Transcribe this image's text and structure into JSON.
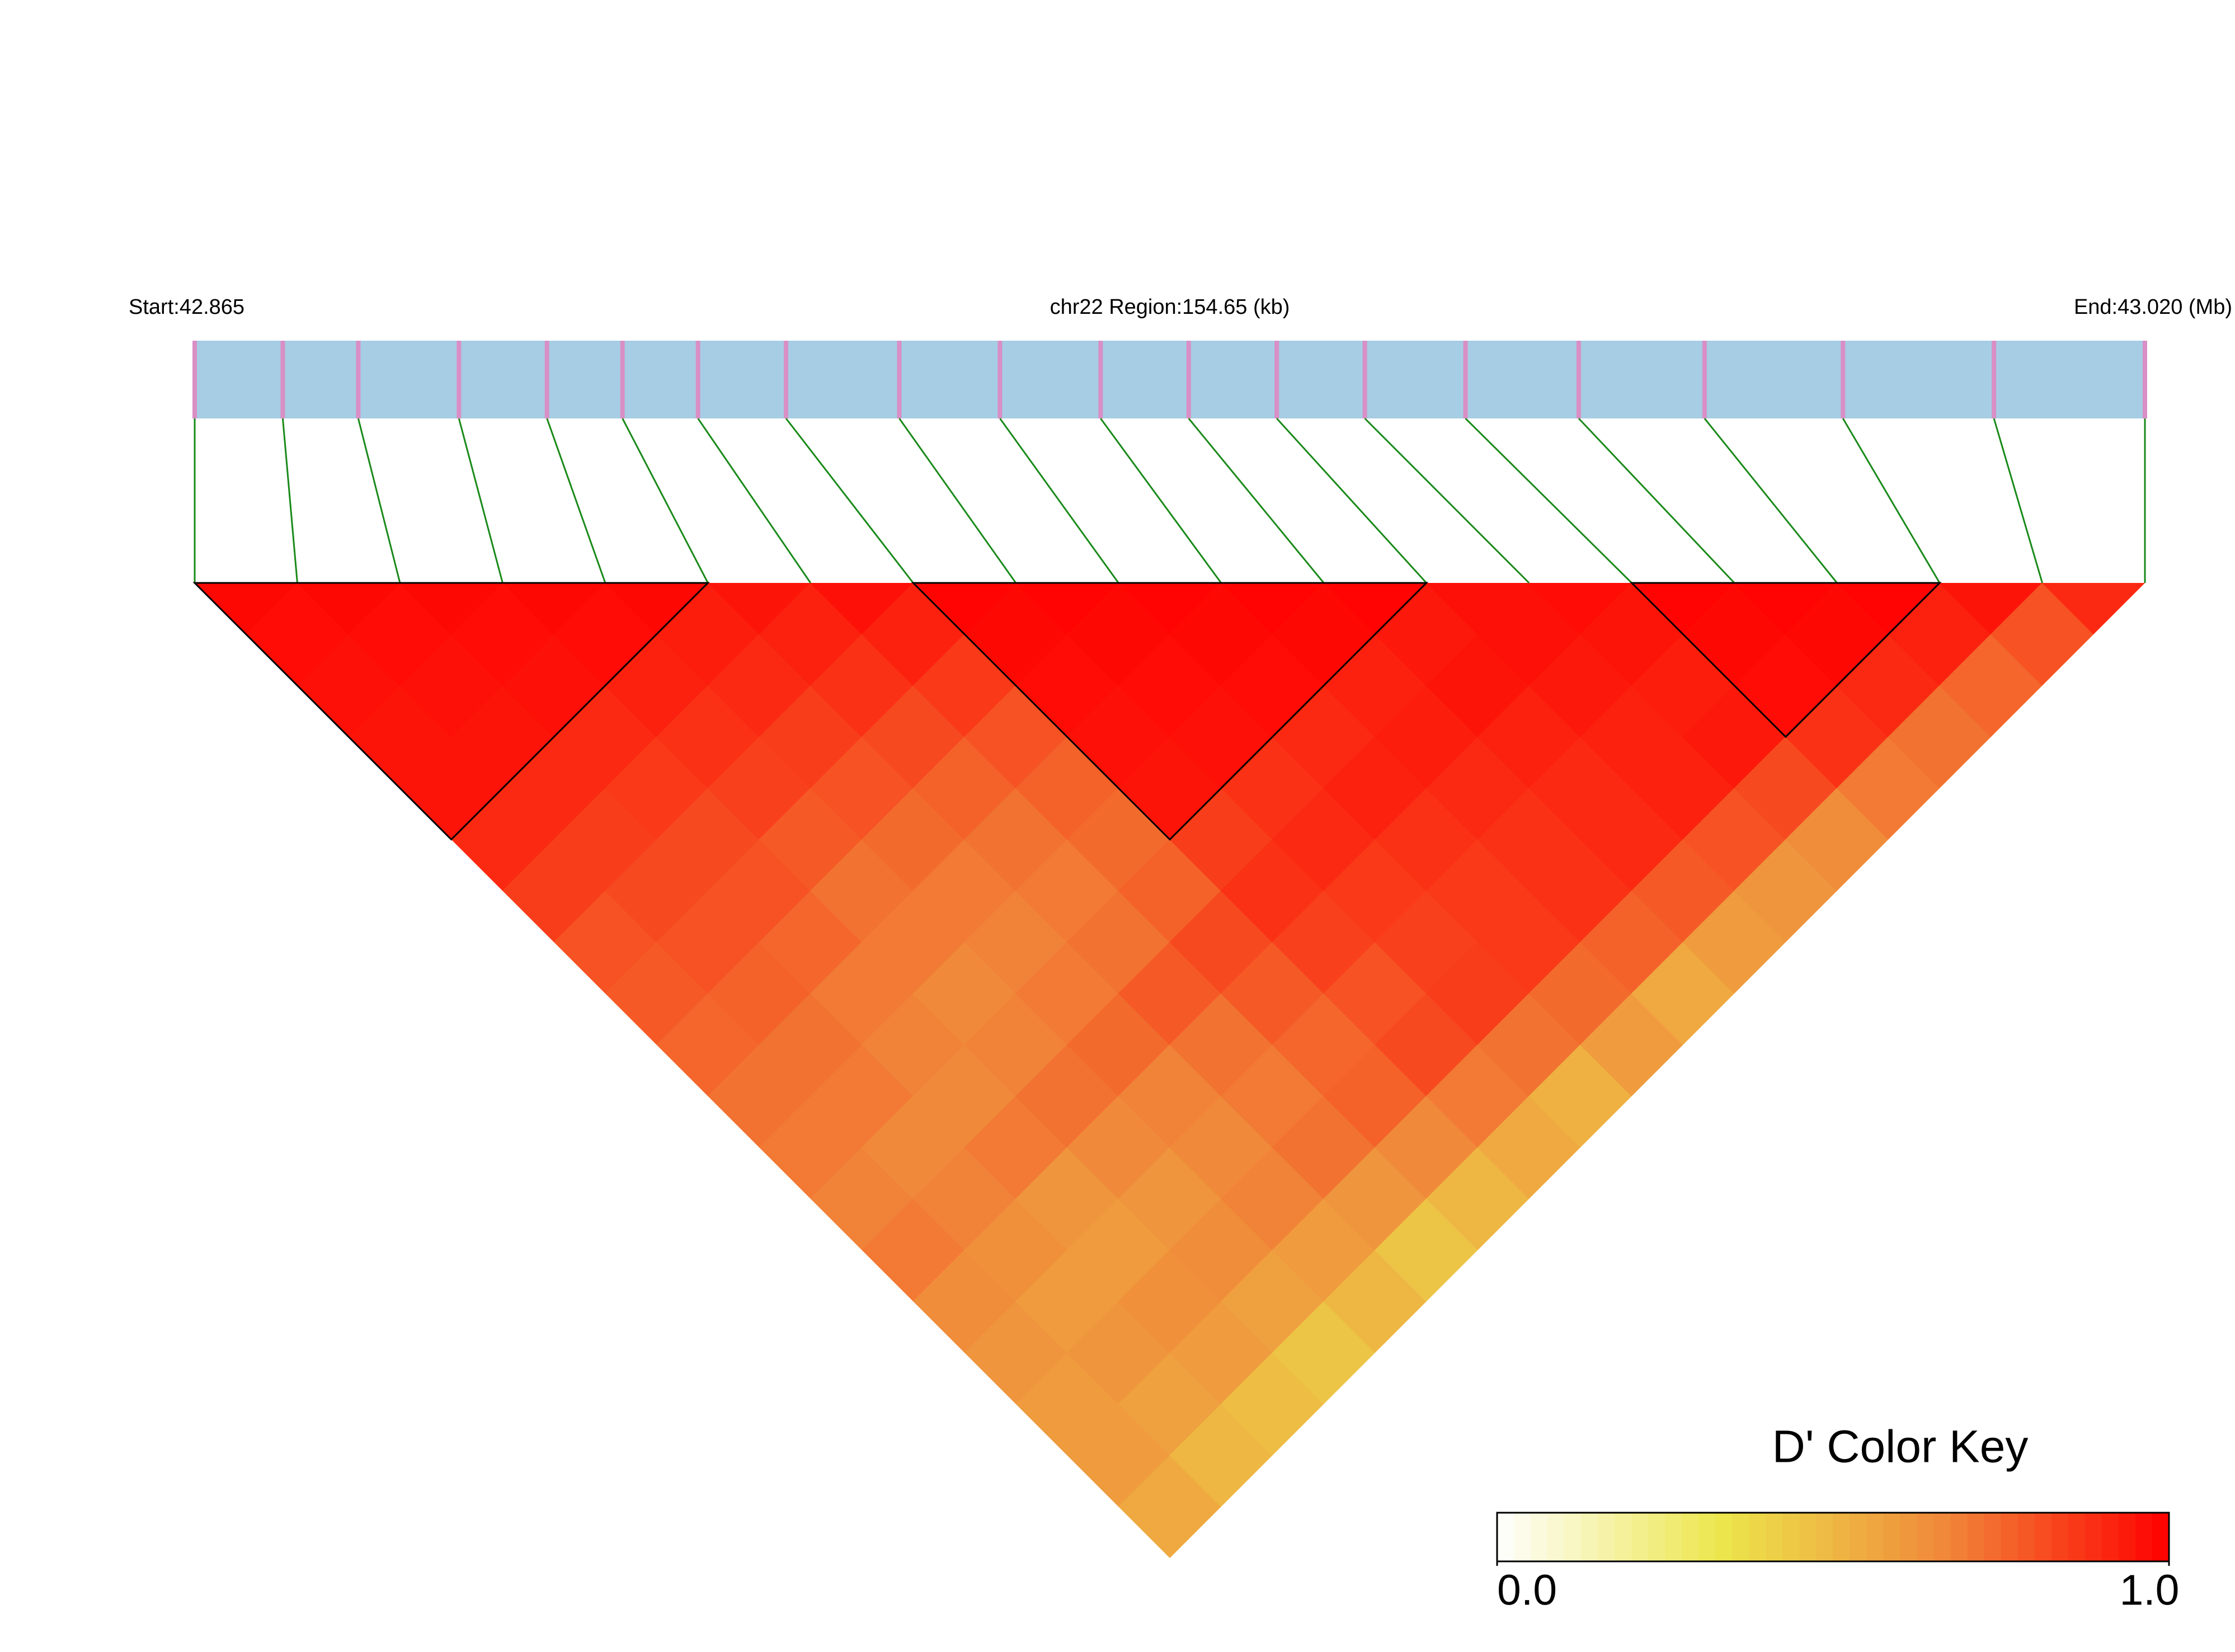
{
  "chart_data": {
    "type": "ld_heatmap",
    "start_label": "Start:42.865",
    "region_label": "chr22 Region:154.65 (kb)",
    "end_label": "End:43.020 (Mb)",
    "xlim": [
      42.865,
      43.02
    ],
    "snp_positions": [
      42.865,
      42.872,
      42.878,
      42.886,
      42.893,
      42.899,
      42.905,
      42.912,
      42.921,
      42.929,
      42.937,
      42.944,
      42.951,
      42.958,
      42.966,
      42.975,
      42.985,
      42.996,
      43.008,
      43.02
    ],
    "ld_matrix": [
      [
        0.98,
        0.97,
        0.96,
        0.95,
        0.95,
        0.9,
        0.85,
        0.8,
        0.78,
        0.75,
        0.72,
        0.7,
        0.68,
        0.7,
        0.65,
        0.62,
        0.6,
        0.6,
        0.55
      ],
      [
        0.98,
        0.97,
        0.96,
        0.95,
        0.9,
        0.85,
        0.82,
        0.8,
        0.76,
        0.72,
        0.7,
        0.66,
        0.68,
        0.64,
        0.6,
        0.62,
        0.58,
        0.5
      ],
      [
        0.98,
        0.97,
        0.96,
        0.9,
        0.86,
        0.82,
        0.8,
        0.75,
        0.7,
        0.68,
        0.66,
        0.7,
        0.62,
        0.6,
        0.64,
        0.6,
        0.48
      ],
      [
        0.98,
        0.97,
        0.92,
        0.88,
        0.84,
        0.78,
        0.72,
        0.7,
        0.66,
        0.68,
        0.72,
        0.66,
        0.62,
        0.65,
        0.58,
        0.45
      ],
      [
        0.98,
        0.93,
        0.9,
        0.85,
        0.8,
        0.74,
        0.7,
        0.68,
        0.7,
        0.74,
        0.68,
        0.66,
        0.68,
        0.6,
        0.5
      ],
      [
        0.95,
        0.92,
        0.88,
        0.82,
        0.76,
        0.72,
        0.7,
        0.72,
        0.78,
        0.72,
        0.7,
        0.72,
        0.62,
        0.45
      ],
      [
        0.96,
        0.92,
        0.86,
        0.8,
        0.76,
        0.74,
        0.76,
        0.82,
        0.78,
        0.75,
        0.76,
        0.66,
        0.5
      ],
      [
        0.99,
        0.98,
        0.97,
        0.96,
        0.95,
        0.85,
        0.88,
        0.84,
        0.8,
        0.82,
        0.7,
        0.55
      ],
      [
        0.99,
        0.98,
        0.97,
        0.96,
        0.88,
        0.9,
        0.86,
        0.84,
        0.85,
        0.72,
        0.52
      ],
      [
        0.99,
        0.98,
        0.97,
        0.9,
        0.92,
        0.88,
        0.86,
        0.86,
        0.74,
        0.6
      ],
      [
        0.99,
        0.98,
        0.92,
        0.93,
        0.9,
        0.88,
        0.88,
        0.76,
        0.55
      ],
      [
        0.99,
        0.94,
        0.95,
        0.92,
        0.9,
        0.9,
        0.78,
        0.6
      ],
      [
        0.96,
        0.96,
        0.94,
        0.92,
        0.92,
        0.8,
        0.62
      ],
      [
        0.97,
        0.95,
        0.93,
        0.94,
        0.82,
        0.65
      ],
      [
        0.99,
        0.98,
        0.97,
        0.88,
        0.7
      ],
      [
        0.99,
        0.98,
        0.9,
        0.72
      ],
      [
        0.99,
        0.92,
        0.75
      ],
      [
        0.95,
        0.8
      ],
      [
        0.9
      ]
    ],
    "blocks": [
      [
        0,
        5
      ],
      [
        7,
        12
      ],
      [
        14,
        17
      ]
    ],
    "colors": [
      "#ffffff",
      "#ece64c",
      "#f0883a",
      "#ff0000"
    ],
    "color_key": {
      "title": "D' Color Key",
      "lim": [
        0,
        1
      ],
      "ticks": [
        {
          "value": 0,
          "label": "0.0"
        },
        {
          "value": 1,
          "label": "1.0"
        }
      ]
    }
  }
}
